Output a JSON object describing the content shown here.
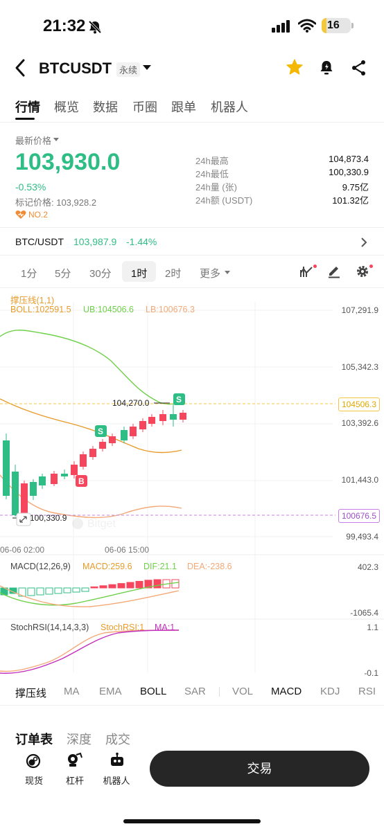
{
  "status_bar": {
    "time": "21:32",
    "battery": "16",
    "battery_level": 0.16
  },
  "header": {
    "symbol": "BTCUSDT",
    "badge": "永续"
  },
  "tabs": [
    "行情",
    "概览",
    "数据",
    "币圈",
    "跟单",
    "机器人"
  ],
  "price_section": {
    "latest_label": "最新价格",
    "price": "103,930.0",
    "change_pct": "-0.53%",
    "mark_price": "标记价格: 103,928.2",
    "rank_label": "NO.2",
    "stats": [
      {
        "label": "24h最高",
        "value": "104,873.4"
      },
      {
        "label": "24h最低",
        "value": "100,330.9"
      },
      {
        "label": "24h量 (张)",
        "value": "9.75亿"
      },
      {
        "label": "24h额 (USDT)",
        "value": "101.32亿"
      }
    ]
  },
  "spot_row": {
    "pair": "BTC/USDT",
    "price": "103,987.9",
    "change": "-1.44%"
  },
  "intervals": {
    "items": [
      "1分",
      "5分",
      "30分",
      "1时",
      "2时",
      "更多"
    ],
    "active": "1时"
  },
  "chart": {
    "overlay_title": "撑压线(1,1)",
    "boll": "BOLL:102591.5",
    "ub": "UB:104506.6",
    "lb": "LB:100676.3",
    "y_ticks": [
      "107,291.9",
      "105,342.3",
      "103,392.6",
      "101,443.0",
      "99,493.4"
    ],
    "ub_tag": "104506.3",
    "lb_tag": "100676.5",
    "high_marker": "104,270.0",
    "low_marker": "100,330.9",
    "x_ticks": [
      "06-06 02:00",
      "06-06 15:00"
    ],
    "signal_s": "S",
    "signal_b": "B"
  },
  "macd": {
    "title": "MACD(12,26,9)",
    "macd": "MACD:259.6",
    "dif": "DIF:21.1",
    "dea": "DEA:-238.6",
    "y_top": "402.3",
    "y_bottom": "-1065.4"
  },
  "stochrsi": {
    "title": "StochRSI(14,14,3,3)",
    "value": "StochRSI:1",
    "ma": "MA:1",
    "y_top": "1.1",
    "y_bottom": "-0.1"
  },
  "indicator_tabs": {
    "items": [
      "撑压线",
      "MA",
      "EMA",
      "BOLL",
      "SAR",
      "VOL",
      "MACD",
      "KDJ",
      "RSI"
    ],
    "active": [
      "撑压线",
      "BOLL",
      "MACD"
    ]
  },
  "orderbook_tabs": [
    "订单表",
    "深度",
    "成交"
  ],
  "bottom_bar": {
    "spot": "现货",
    "margin": "杠杆",
    "bot": "机器人",
    "trade": "交易"
  },
  "colors": {
    "up": "#2ebd85",
    "down": "#f6465d",
    "boll_mid": "#e89b2a",
    "boll_ub": "#6fd04a",
    "boll_lb": "#f3a978"
  }
}
